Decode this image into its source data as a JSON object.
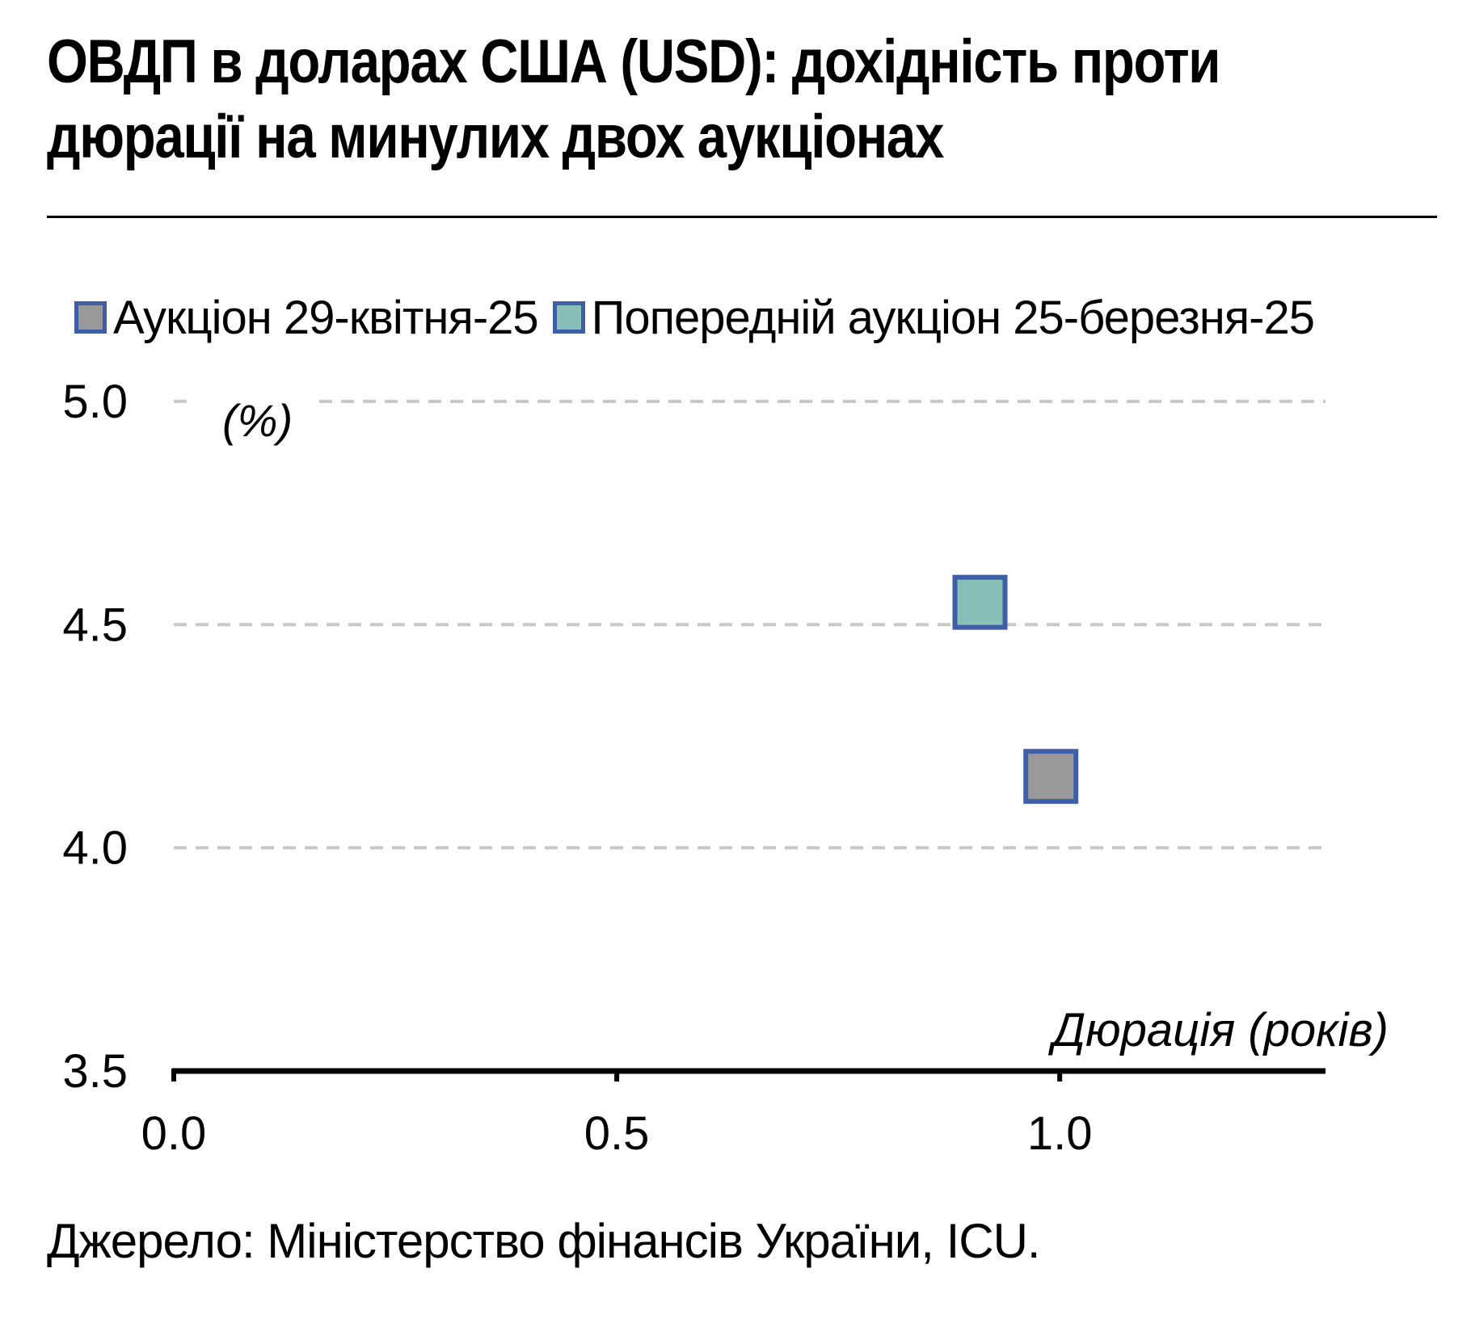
{
  "title": "ОВДП в доларах США (USD): дохідність проти дюрації на минулих двох аукціонах",
  "source": "Джерело: Міністерство фінансів України, ICU.",
  "chart_data": {
    "type": "scatter",
    "title": "ОВДП в доларах США (USD): дохідність проти дюрації на минулих двох аукціонах",
    "xlabel": "Дюрація (років)",
    "ylabel": "(%)",
    "xlim": [
      0,
      1.3
    ],
    "ylim": [
      3.5,
      5.0
    ],
    "x_ticks": [
      "0.0",
      "0.5",
      "1.0"
    ],
    "y_ticks": [
      "3.5",
      "4.0",
      "4.5",
      "5.0"
    ],
    "grid": "horizontal dashed",
    "legend_position": "top",
    "series": [
      {
        "name": "Аукціон 29-квітня-25",
        "color": "#999999",
        "edge_color": "#3e5fa6",
        "points": [
          {
            "x": 0.99,
            "y": 4.16
          }
        ]
      },
      {
        "name": "Попередній аукціон 25-березня-25",
        "color": "#88bfb8",
        "edge_color": "#3e5fa6",
        "points": [
          {
            "x": 0.91,
            "y": 4.55
          }
        ]
      }
    ]
  }
}
